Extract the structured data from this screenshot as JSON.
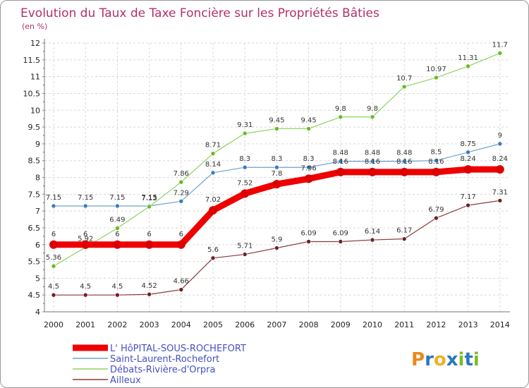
{
  "chart_data": {
    "type": "line",
    "title": "Evolution du Taux de Taxe Foncière sur les Propriétés Bâties",
    "subtitle": "(en %)",
    "xlabel": "",
    "ylabel": "(en %)",
    "ylim": [
      4,
      12
    ],
    "yticks": [
      "4",
      "4.5",
      "5",
      "5.5",
      "6",
      "6.5",
      "7",
      "7.5",
      "8",
      "8.5",
      "9",
      "9.5",
      "10",
      "10.5",
      "11",
      "11.5",
      "12"
    ],
    "x": [
      "2000",
      "2001",
      "2002",
      "2003",
      "2004",
      "2005",
      "2006",
      "2007",
      "2008",
      "2009",
      "2010",
      "2011",
      "2012",
      "2013",
      "2014"
    ],
    "grid": true,
    "legend_position": "bottom-left",
    "series": [
      {
        "name": "Saint-Laurent-Rochefort",
        "color": "#6fa0d0",
        "marker": "#3a7bbf",
        "values": [
          7.15,
          7.15,
          7.15,
          7.15,
          7.29,
          8.14,
          8.3,
          8.3,
          8.3,
          8.48,
          8.48,
          8.48,
          8.5,
          8.75,
          9
        ],
        "labels": [
          "7.15",
          "7.15",
          "7.15",
          "7.15",
          "7.29",
          "8.14",
          "8.3",
          "8.3",
          "8.3",
          "8.48",
          "8.48",
          "8.48",
          "8.5",
          "8.75",
          "9"
        ]
      },
      {
        "name": "Débats-Rivière-d'Orpra",
        "color": "#90d060",
        "marker": "#66bb22",
        "values": [
          5.36,
          5.92,
          6.49,
          7.13,
          7.86,
          8.71,
          9.31,
          9.45,
          9.45,
          9.8,
          9.8,
          10.7,
          10.97,
          11.31,
          11.7
        ],
        "labels": [
          "5.36",
          "5.92",
          "6.49",
          "7.13",
          "7.86",
          "8.71",
          "9.31",
          "9.45",
          "9.45",
          "9.8",
          "9.8",
          "10.7",
          "10.97",
          "11.31",
          "11.7"
        ]
      },
      {
        "name": "Ailleux",
        "color": "#8a3a3a",
        "marker": "#6e2222",
        "values": [
          4.5,
          4.5,
          4.5,
          4.52,
          4.66,
          5.6,
          5.71,
          5.9,
          6.09,
          6.09,
          6.14,
          6.17,
          6.79,
          7.17,
          7.31
        ],
        "labels": [
          "4.5",
          "4.5",
          "4.5",
          "4.52",
          "4.66",
          "5.6",
          "5.71",
          "5.9",
          "6.09",
          "6.09",
          "6.14",
          "6.17",
          "6.79",
          "7.17",
          "7.31"
        ]
      },
      {
        "name": "L' HôPITAL-SOUS-ROCHEFORT",
        "color": "#ee0000",
        "marker": "#dd0000",
        "main": true,
        "values": [
          6,
          6,
          6,
          6,
          6,
          7.02,
          7.52,
          7.8,
          7.96,
          8.16,
          8.16,
          8.16,
          8.16,
          8.24,
          8.24
        ],
        "labels": [
          "6",
          "6",
          "6",
          "6",
          "6",
          "7.02",
          "7.52",
          "7.8",
          "7.96",
          "8.16",
          "8.16",
          "8.16",
          "8.16",
          "8.24",
          "8.24"
        ]
      }
    ],
    "legend_order": [
      "L' HôPITAL-SOUS-ROCHEFORT",
      "Saint-Laurent-Rochefort",
      "Débats-Rivière-d'Orpra",
      "Ailleux"
    ]
  },
  "branding": {
    "logo_text": "Proxiti",
    "logo_letters": [
      "P",
      "r",
      "o",
      "x",
      "i",
      "t",
      "i"
    ],
    "logo_colors": [
      "#e88a1a",
      "#2a77c0",
      "#f0b020",
      "#2a77c0",
      "#7dbb2a",
      "#2a77c0",
      "#7dbb2a"
    ]
  }
}
